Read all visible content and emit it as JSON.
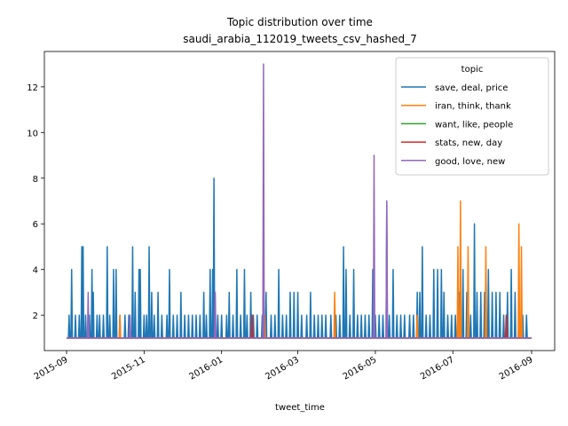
{
  "chart_data": {
    "type": "line",
    "title": "Topic distribution over time",
    "subtitle": "saudi_arabia_112019_tweets_csv_hashed_7",
    "xlabel": "tweet_time",
    "ylabel": "",
    "x_range": [
      "2015-09-01",
      "2016-09-01"
    ],
    "ylim": [
      0.45,
      13.55
    ],
    "y_ticks": [
      2,
      4,
      6,
      8,
      10,
      12
    ],
    "x_ticks": [
      "2015-09",
      "2015-11",
      "2016-01",
      "2016-03",
      "2016-05",
      "2016-07",
      "2016-09"
    ],
    "grid": false,
    "baseline": 1,
    "legend": {
      "title": "topic",
      "placement": "top-right"
    },
    "series": [
      {
        "name": "save, deal, price",
        "color": "#1f77b4",
        "peaks": [
          [
            "2015-09-03",
            2
          ],
          [
            "2015-09-05",
            4
          ],
          [
            "2015-09-08",
            2
          ],
          [
            "2015-09-11",
            2
          ],
          [
            "2015-09-13",
            5
          ],
          [
            "2015-09-14",
            5
          ],
          [
            "2015-09-16",
            2
          ],
          [
            "2015-09-19",
            2
          ],
          [
            "2015-09-21",
            4
          ],
          [
            "2015-09-22",
            3
          ],
          [
            "2015-09-25",
            2
          ],
          [
            "2015-09-27",
            2
          ],
          [
            "2015-09-30",
            2
          ],
          [
            "2015-10-03",
            5
          ],
          [
            "2015-10-05",
            2
          ],
          [
            "2015-10-08",
            4
          ],
          [
            "2015-10-10",
            4
          ],
          [
            "2015-10-13",
            2
          ],
          [
            "2015-10-17",
            2
          ],
          [
            "2015-10-20",
            2
          ],
          [
            "2015-10-23",
            5
          ],
          [
            "2015-10-25",
            3
          ],
          [
            "2015-10-28",
            4
          ],
          [
            "2015-10-29",
            4
          ],
          [
            "2015-11-01",
            2
          ],
          [
            "2015-11-03",
            2
          ],
          [
            "2015-11-05",
            5
          ],
          [
            "2015-11-07",
            3
          ],
          [
            "2015-11-09",
            2
          ],
          [
            "2015-11-12",
            3
          ],
          [
            "2015-11-15",
            2
          ],
          [
            "2015-11-19",
            2
          ],
          [
            "2015-11-21",
            4
          ],
          [
            "2015-11-24",
            2
          ],
          [
            "2015-11-27",
            2
          ],
          [
            "2015-11-30",
            3
          ],
          [
            "2015-12-03",
            2
          ],
          [
            "2015-12-06",
            2
          ],
          [
            "2015-12-09",
            2
          ],
          [
            "2015-12-12",
            2
          ],
          [
            "2015-12-15",
            2
          ],
          [
            "2015-12-18",
            3
          ],
          [
            "2015-12-20",
            2
          ],
          [
            "2015-12-23",
            4
          ],
          [
            "2015-12-25",
            4
          ],
          [
            "2015-12-26",
            8
          ],
          [
            "2015-12-29",
            2
          ],
          [
            "2016-01-01",
            2
          ],
          [
            "2016-01-05",
            2
          ],
          [
            "2016-01-07",
            3
          ],
          [
            "2016-01-10",
            2
          ],
          [
            "2016-01-13",
            4
          ],
          [
            "2016-01-16",
            2
          ],
          [
            "2016-01-19",
            4
          ],
          [
            "2016-01-21",
            2
          ],
          [
            "2016-01-24",
            3
          ],
          [
            "2016-01-26",
            2
          ],
          [
            "2016-01-29",
            2
          ],
          [
            "2016-02-02",
            2
          ],
          [
            "2016-02-05",
            3
          ],
          [
            "2016-02-09",
            2
          ],
          [
            "2016-02-12",
            2
          ],
          [
            "2016-02-15",
            4
          ],
          [
            "2016-02-18",
            2
          ],
          [
            "2016-02-21",
            2
          ],
          [
            "2016-02-24",
            3
          ],
          [
            "2016-02-27",
            3
          ],
          [
            "2016-03-01",
            3
          ],
          [
            "2016-03-04",
            2
          ],
          [
            "2016-03-08",
            2
          ],
          [
            "2016-03-11",
            3
          ],
          [
            "2016-03-14",
            2
          ],
          [
            "2016-03-17",
            2
          ],
          [
            "2016-03-20",
            2
          ],
          [
            "2016-03-23",
            2
          ],
          [
            "2016-03-27",
            2
          ],
          [
            "2016-03-31",
            2
          ],
          [
            "2016-04-03",
            2
          ],
          [
            "2016-04-06",
            5
          ],
          [
            "2016-04-08",
            4
          ],
          [
            "2016-04-11",
            2
          ],
          [
            "2016-04-14",
            4
          ],
          [
            "2016-04-17",
            2
          ],
          [
            "2016-04-20",
            2
          ],
          [
            "2016-04-23",
            2
          ],
          [
            "2016-04-26",
            2
          ],
          [
            "2016-04-29",
            4
          ],
          [
            "2016-05-01",
            2
          ],
          [
            "2016-05-04",
            2
          ],
          [
            "2016-05-07",
            2
          ],
          [
            "2016-05-10",
            7
          ],
          [
            "2016-05-12",
            2
          ],
          [
            "2016-05-15",
            4
          ],
          [
            "2016-05-18",
            2
          ],
          [
            "2016-05-21",
            2
          ],
          [
            "2016-05-24",
            2
          ],
          [
            "2016-05-28",
            2
          ],
          [
            "2016-05-31",
            2
          ],
          [
            "2016-06-03",
            3
          ],
          [
            "2016-06-05",
            3
          ],
          [
            "2016-06-07",
            5
          ],
          [
            "2016-06-10",
            2
          ],
          [
            "2016-06-13",
            2
          ],
          [
            "2016-06-16",
            4
          ],
          [
            "2016-06-19",
            4
          ],
          [
            "2016-06-22",
            4
          ],
          [
            "2016-06-24",
            3
          ],
          [
            "2016-06-27",
            2
          ],
          [
            "2016-06-30",
            2
          ],
          [
            "2016-07-03",
            2
          ],
          [
            "2016-07-06",
            3
          ],
          [
            "2016-07-09",
            4
          ],
          [
            "2016-07-12",
            3
          ],
          [
            "2016-07-15",
            2
          ],
          [
            "2016-07-18",
            6
          ],
          [
            "2016-07-20",
            3
          ],
          [
            "2016-07-23",
            3
          ],
          [
            "2016-07-26",
            3
          ],
          [
            "2016-07-29",
            4
          ],
          [
            "2016-08-01",
            3
          ],
          [
            "2016-08-04",
            3
          ],
          [
            "2016-08-07",
            3
          ],
          [
            "2016-08-10",
            2
          ],
          [
            "2016-08-13",
            3
          ],
          [
            "2016-08-16",
            4
          ],
          [
            "2016-08-19",
            3
          ],
          [
            "2016-08-22",
            2
          ],
          [
            "2016-08-25",
            2
          ],
          [
            "2016-08-28",
            2
          ]
        ]
      },
      {
        "name": "iran, think, thank",
        "color": "#ff7f0e",
        "peaks": [
          [
            "2015-10-13",
            2
          ],
          [
            "2016-02-04",
            2
          ],
          [
            "2016-03-30",
            3
          ],
          [
            "2016-06-03",
            2
          ],
          [
            "2016-07-05",
            5
          ],
          [
            "2016-07-07",
            7
          ],
          [
            "2016-07-13",
            5
          ],
          [
            "2016-07-27",
            5
          ],
          [
            "2016-08-22",
            6
          ],
          [
            "2016-08-24",
            5
          ]
        ]
      },
      {
        "name": "want, like, people",
        "color": "#2ca02c",
        "peaks": []
      },
      {
        "name": "stats, new, day",
        "color": "#d62728",
        "peaks": [
          [
            "2016-01-25",
            2
          ],
          [
            "2016-08-12",
            2
          ]
        ]
      },
      {
        "name": "good, love, new",
        "color": "#9467bd",
        "peaks": [
          [
            "2015-09-18",
            3
          ],
          [
            "2015-10-21",
            2
          ],
          [
            "2015-12-27",
            3
          ],
          [
            "2016-02-03",
            13
          ],
          [
            "2016-04-30",
            9
          ],
          [
            "2016-05-10",
            7
          ]
        ]
      }
    ]
  }
}
